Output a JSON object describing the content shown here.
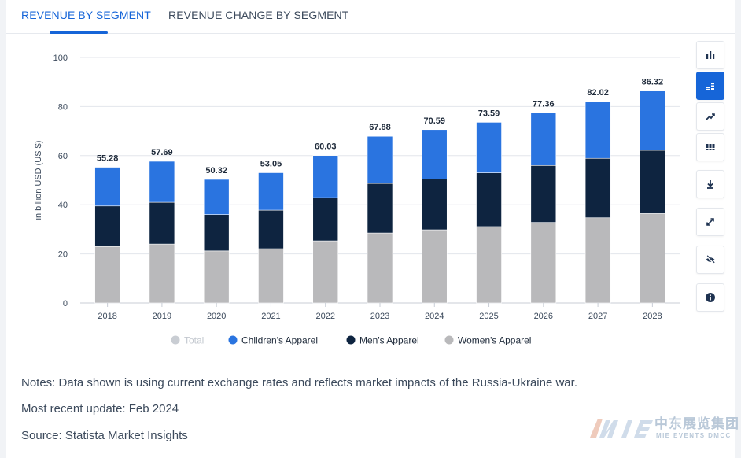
{
  "tabs": [
    {
      "label": "REVENUE BY SEGMENT",
      "active": true
    },
    {
      "label": "REVENUE CHANGE BY SEGMENT",
      "active": false
    }
  ],
  "toolbar": [
    {
      "name": "bar-chart-icon",
      "active": false
    },
    {
      "name": "stacked-bar-icon",
      "active": true
    },
    {
      "name": "trend-line-icon",
      "active": false
    },
    {
      "name": "table-grid-icon",
      "active": false
    },
    {
      "name": "download-icon",
      "active": false
    },
    {
      "name": "fullscreen-icon",
      "active": false
    },
    {
      "name": "hide-icon",
      "active": false
    },
    {
      "name": "info-icon",
      "active": false
    }
  ],
  "chart_data": {
    "type": "bar",
    "stacked": true,
    "ylabel": "in billion USD (US $)",
    "ylim": [
      0,
      100
    ],
    "yticks": [
      0,
      20,
      40,
      60,
      80,
      100
    ],
    "grid": true,
    "legend_position": "bottom",
    "categories": [
      "2018",
      "2019",
      "2020",
      "2021",
      "2022",
      "2023",
      "2024",
      "2025",
      "2026",
      "2027",
      "2028"
    ],
    "totals": [
      "55.28",
      "57.69",
      "50.32",
      "53.05",
      "60.03",
      "67.88",
      "70.59",
      "73.59",
      "77.36",
      "82.02",
      "86.32"
    ],
    "series": [
      {
        "name": "Women's Apparel",
        "color": "#b9b9bb",
        "values": [
          23.0,
          24.0,
          21.2,
          22.1,
          25.3,
          28.5,
          29.8,
          31.1,
          32.8,
          34.7,
          36.4
        ]
      },
      {
        "name": "Men's Apparel",
        "color": "#0e2440",
        "values": [
          16.5,
          17.0,
          14.8,
          15.7,
          17.6,
          20.2,
          20.7,
          21.9,
          23.2,
          24.2,
          25.8
        ]
      },
      {
        "name": "Children's Apparel",
        "color": "#2a74e0",
        "values": [
          15.78,
          16.69,
          14.32,
          15.25,
          17.13,
          19.18,
          20.09,
          20.59,
          21.36,
          23.12,
          24.12
        ]
      }
    ],
    "legend": [
      {
        "label": "Total",
        "color": "#c9cdd3",
        "muted": true
      },
      {
        "label": "Children's Apparel",
        "color": "#2a74e0",
        "muted": false
      },
      {
        "label": "Men's Apparel",
        "color": "#0e2440",
        "muted": false
      },
      {
        "label": "Women's Apparel",
        "color": "#b9b9bb",
        "muted": false
      }
    ]
  },
  "notes": {
    "line1": "Notes: Data shown is using current exchange rates and reflects market impacts of the Russia-Ukraine war.",
    "line2": "Most recent update: Feb 2024",
    "line3": "Source: Statista Market Insights"
  },
  "watermark": {
    "chinese": "中东展览集团",
    "english": "MIE EVENTS DMCC"
  }
}
